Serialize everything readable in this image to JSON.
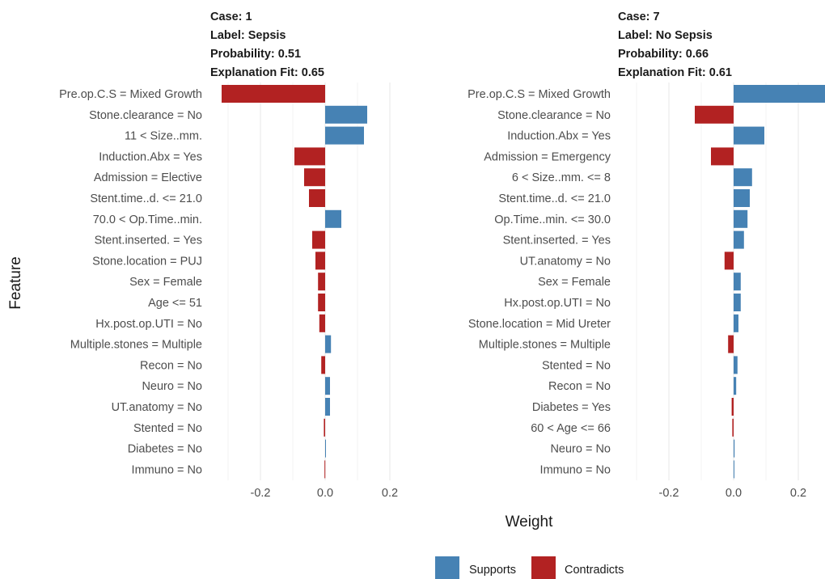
{
  "chart_data": {
    "type": "bar",
    "orientation": "horizontal",
    "xlabel": "Weight",
    "ylabel": "Feature",
    "xlim": [
      -0.32,
      0.29
    ],
    "xticks": [
      -0.2,
      0.0,
      0.2
    ],
    "xtick_labels": [
      "-0.2",
      "0.0",
      "0.2"
    ],
    "grid": true,
    "legend_position": "bottom",
    "legend": [
      {
        "label": "Supports",
        "color": "#4682B4"
      },
      {
        "label": "Contradicts",
        "color": "#B22222"
      }
    ],
    "panels": [
      {
        "case": "Case: 1",
        "label": "Label: Sepsis",
        "probability": "Probability: 0.51",
        "fit": "Explanation Fit: 0.65",
        "features": [
          {
            "name": "Pre.op.C.S = Mixed Growth",
            "weight": -0.32
          },
          {
            "name": "Stone.clearance = No",
            "weight": 0.13
          },
          {
            "name": "11 < Size..mm.",
            "weight": 0.12
          },
          {
            "name": "Induction.Abx = Yes",
            "weight": -0.095
          },
          {
            "name": "Admission = Elective",
            "weight": -0.065
          },
          {
            "name": "Stent.time..d. <= 21.0",
            "weight": -0.05
          },
          {
            "name": "70.0 < Op.Time..min.",
            "weight": 0.05
          },
          {
            "name": "Stent.inserted. = Yes",
            "weight": -0.04
          },
          {
            "name": "Stone.location = PUJ",
            "weight": -0.03
          },
          {
            "name": "Sex = Female",
            "weight": -0.022
          },
          {
            "name": "Age <= 51",
            "weight": -0.022
          },
          {
            "name": "Hx.post.op.UTI = No",
            "weight": -0.018
          },
          {
            "name": "Multiple.stones = Multiple",
            "weight": 0.018
          },
          {
            "name": "Recon = No",
            "weight": -0.012
          },
          {
            "name": "Neuro = No",
            "weight": 0.015
          },
          {
            "name": "UT.anatomy = No",
            "weight": 0.015
          },
          {
            "name": "Stented = No",
            "weight": -0.004
          },
          {
            "name": "Diabetes = No",
            "weight": 0.002
          },
          {
            "name": "Immuno = No",
            "weight": -0.002
          }
        ]
      },
      {
        "case": "Case: 7",
        "label": "Label: No Sepsis",
        "probability": "Probability: 0.66",
        "fit": "Explanation Fit: 0.61",
        "features": [
          {
            "name": "Pre.op.C.S = Mixed Growth",
            "weight": 0.29
          },
          {
            "name": "Stone.clearance = No",
            "weight": -0.12
          },
          {
            "name": "Induction.Abx = Yes",
            "weight": 0.095
          },
          {
            "name": "Admission = Emergency",
            "weight": -0.07
          },
          {
            "name": "6 < Size..mm. <= 8",
            "weight": 0.057
          },
          {
            "name": "Stent.time..d. <= 21.0",
            "weight": 0.05
          },
          {
            "name": "Op.Time..min. <= 30.0",
            "weight": 0.043
          },
          {
            "name": "Stent.inserted. = Yes",
            "weight": 0.032
          },
          {
            "name": "UT.anatomy = No",
            "weight": -0.028
          },
          {
            "name": "Sex = Female",
            "weight": 0.022
          },
          {
            "name": "Hx.post.op.UTI = No",
            "weight": 0.022
          },
          {
            "name": "Stone.location = Mid Ureter",
            "weight": 0.015
          },
          {
            "name": "Multiple.stones = Multiple",
            "weight": -0.017
          },
          {
            "name": "Stented = No",
            "weight": 0.012
          },
          {
            "name": "Recon = No",
            "weight": 0.008
          },
          {
            "name": "Diabetes = Yes",
            "weight": -0.006
          },
          {
            "name": "60 < Age <= 66",
            "weight": -0.004
          },
          {
            "name": "Neuro = No",
            "weight": 0.003
          },
          {
            "name": "Immuno = No",
            "weight": 0.001
          }
        ]
      }
    ]
  }
}
